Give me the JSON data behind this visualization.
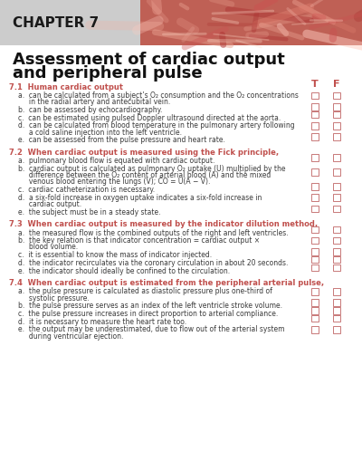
{
  "chapter_label": "CHAPTER 7",
  "title_line1": "Assessment of cardiac output",
  "title_line2": "and peripheral pulse",
  "bg_color": "#ffffff",
  "tf_color": "#c0504d",
  "question_color": "#c0504d",
  "text_color": "#3a3a3a",
  "box_edge_color": "#c87878",
  "sections": [
    {
      "num": "7.1",
      "heading": "Human cardiac output",
      "items": [
        "a.  can be calculated from a subject’s O₂ consumption and the O₂ concentrations\n     in the radial artery and antecubital vein.",
        "b.  can be assessed by echocardiography.",
        "c.  can be estimated using pulsed Doppler ultrasound directed at the aorta.",
        "d.  can be calculated from blood temperature in the pulmonary artery following\n     a cold saline injection into the left ventricle.",
        "e.  can be assessed from the pulse pressure and heart rate."
      ],
      "box_row_counts": [
        2,
        1,
        1,
        2,
        1
      ]
    },
    {
      "num": "7.2",
      "heading": "When cardiac output is measured using the Fick principle,",
      "items": [
        "a.  pulmonary blood flow is equated with cardiac output.",
        "b.  cardiac output is calculated as pulmonary O₂ uptake (U) multiplied by the\n     difference between the O₂ content of arterial blood (A) and the mixed\n     venous blood entering the lungs (V); CO = U(A − V).",
        "c.  cardiac catheterization is necessary.",
        "d.  a six-fold increase in oxygen uptake indicates a six-fold increase in\n     cardiac output.",
        "e.  the subject must be in a steady state."
      ],
      "box_row_counts": [
        1,
        3,
        1,
        2,
        1
      ]
    },
    {
      "num": "7.3",
      "heading": "When cardiac output is measured by the indicator dilution method,",
      "items": [
        "a.  the measured flow is the combined outputs of the right and left ventricles.",
        "b.  the key relation is that indicator concentration = cardiac output ×\n     blood volume.",
        "c.  it is essential to know the mass of indicator injected.",
        "d.  the indicator recirculates via the coronary circulation in about 20 seconds.",
        "e.  the indicator should ideally be confined to the circulation."
      ],
      "box_row_counts": [
        1,
        2,
        1,
        1,
        1
      ]
    },
    {
      "num": "7.4",
      "heading": "When cardiac output is estimated from the peripheral arterial pulse,",
      "items": [
        "a.  the pulse pressure is calculated as diastolic pressure plus one-third of\n     systolic pressure.",
        "b.  the pulse pressure serves as an index of the left ventricle stroke volume.",
        "c.  the pulse pressure increases in direct proportion to arterial compliance.",
        "d.  it is necessary to measure the heart rate too.",
        "e.  the output may be underestimated, due to flow out of the arterial system\n     during ventricular ejection."
      ],
      "box_row_counts": [
        2,
        1,
        1,
        1,
        2
      ]
    }
  ]
}
